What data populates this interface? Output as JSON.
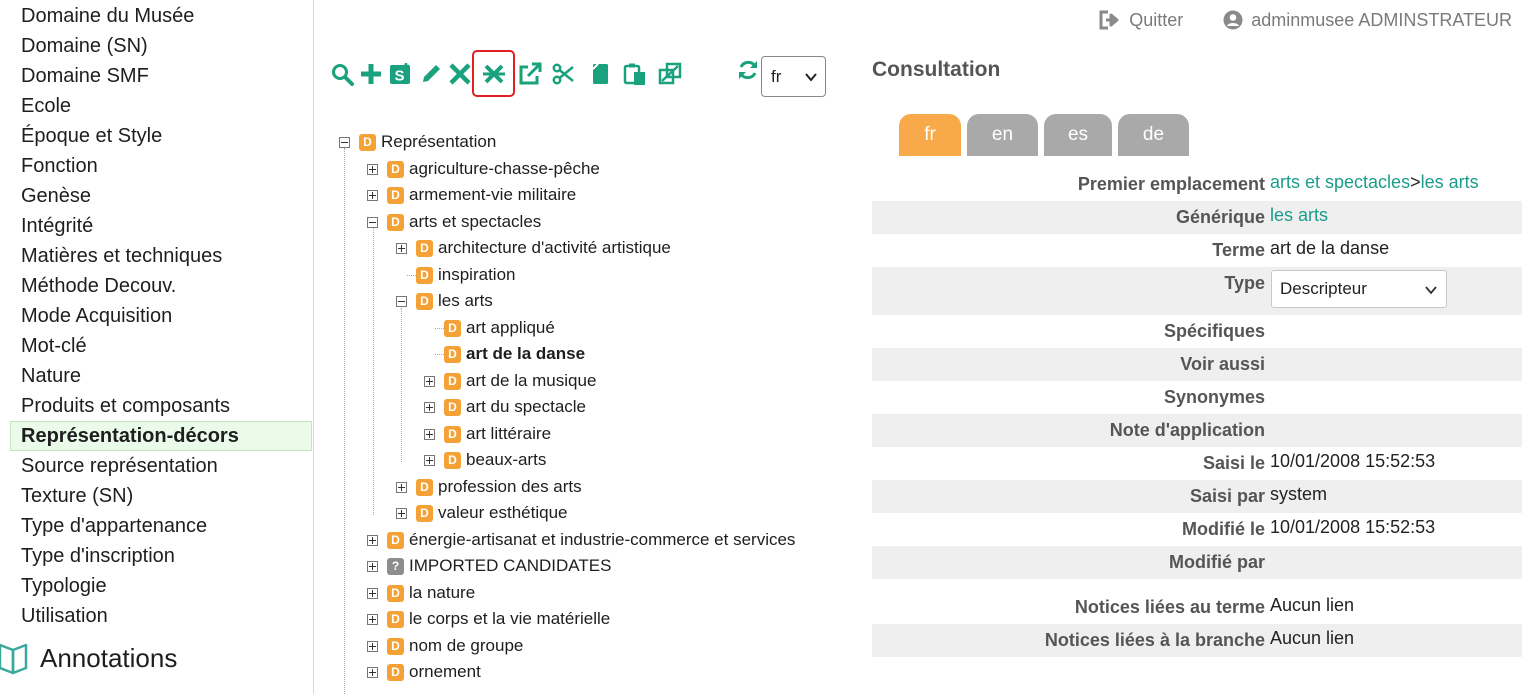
{
  "sidebar": {
    "items": [
      "Domaine du Musée",
      "Domaine (SN)",
      "Domaine SMF",
      "Ecole",
      "Époque et Style",
      "Fonction",
      "Genèse",
      "Intégrité",
      "Matières et techniques",
      "Méthode Decouv.",
      "Mode Acquisition",
      "Mot-clé",
      "Nature",
      "Produits et composants",
      "Représentation-décors",
      "Source représentation",
      "Texture (SN)",
      "Type d'appartenance",
      "Type d'inscription",
      "Typologie",
      "Utilisation"
    ],
    "active_index": 14,
    "annotations_label": "Annotations"
  },
  "topbar": {
    "quit_label": "Quitter",
    "user_label": "adminmusee ADMINSTRATEUR"
  },
  "toolbar": {
    "icons": [
      "search-icon",
      "add-icon",
      "s-box-icon",
      "edit-pencil-icon",
      "delete-x-icon",
      "move-cross-icon",
      "open-external-icon",
      "cut-scissors-icon",
      "copy-icon",
      "paste-icon",
      "merge-icon"
    ],
    "highlighted": "move-cross-icon",
    "refresh_icon": "refresh-icon",
    "language_value": "fr",
    "accent_color": "#1aa17e"
  },
  "tree": {
    "nodes": [
      {
        "label": "Représentation",
        "badge": "D",
        "exp": "minus"
      },
      {
        "label": "agriculture-chasse-pêche",
        "badge": "D",
        "exp": "plus"
      },
      {
        "label": "armement-vie militaire",
        "badge": "D",
        "exp": "plus"
      },
      {
        "label": "arts et spectacles",
        "badge": "D",
        "exp": "minus"
      },
      {
        "label": "architecture d'activité artistique",
        "badge": "D",
        "exp": "plus"
      },
      {
        "label": "inspiration",
        "badge": "D",
        "exp": "none"
      },
      {
        "label": "les arts",
        "badge": "D",
        "exp": "minus"
      },
      {
        "label": "art appliqué",
        "badge": "D",
        "exp": "none"
      },
      {
        "label": "art de la danse",
        "badge": "D",
        "exp": "none",
        "selected": true
      },
      {
        "label": "art de la musique",
        "badge": "D",
        "exp": "plus"
      },
      {
        "label": "art du spectacle",
        "badge": "D",
        "exp": "plus"
      },
      {
        "label": "art littéraire",
        "badge": "D",
        "exp": "plus"
      },
      {
        "label": "beaux-arts",
        "badge": "D",
        "exp": "plus"
      },
      {
        "label": "profession des arts",
        "badge": "D",
        "exp": "plus"
      },
      {
        "label": "valeur esthétique",
        "badge": "D",
        "exp": "plus"
      },
      {
        "label": "énergie-artisanat et industrie-commerce et services",
        "badge": "D",
        "exp": "plus"
      },
      {
        "label": "IMPORTED CANDIDATES",
        "badge": "?",
        "exp": "plus"
      },
      {
        "label": "la nature",
        "badge": "D",
        "exp": "plus"
      },
      {
        "label": "le corps et la vie matérielle",
        "badge": "D",
        "exp": "plus"
      },
      {
        "label": "nom de groupe",
        "badge": "D",
        "exp": "plus"
      },
      {
        "label": "ornement",
        "badge": "D",
        "exp": "plus"
      }
    ]
  },
  "consultation": {
    "title": "Consultation",
    "tabs": [
      "fr",
      "en",
      "es",
      "de"
    ],
    "active_tab": "fr",
    "fields": {
      "premier_emplacement": {
        "label": "Premier emplacement",
        "link1": "arts et spectacles",
        "sep": ">",
        "link2": "les arts"
      },
      "generique": {
        "label": "Générique",
        "link": "les arts"
      },
      "terme": {
        "label": "Terme",
        "value": "art de la danse"
      },
      "type": {
        "label": "Type",
        "value": "Descripteur"
      },
      "specifiques": {
        "label": "Spécifiques"
      },
      "voir_aussi": {
        "label": "Voir aussi"
      },
      "synonymes": {
        "label": "Synonymes"
      },
      "note_application": {
        "label": "Note d'application"
      },
      "saisi_le": {
        "label": "Saisi le",
        "value": "10/01/2008 15:52:53"
      },
      "saisi_par": {
        "label": "Saisi par",
        "value": "system"
      },
      "modifie_le": {
        "label": "Modifié le",
        "value": "10/01/2008 15:52:53"
      },
      "modifie_par": {
        "label": "Modifié par"
      },
      "notices_terme": {
        "label": "Notices liées au terme",
        "value": "Aucun lien"
      },
      "notices_branche": {
        "label": "Notices liées à la branche",
        "value": "Aucun lien"
      }
    },
    "colors": {
      "tab_active": "#f8a94a",
      "tab_inactive": "#a9a9a9",
      "link": "#1a9c8b"
    }
  }
}
